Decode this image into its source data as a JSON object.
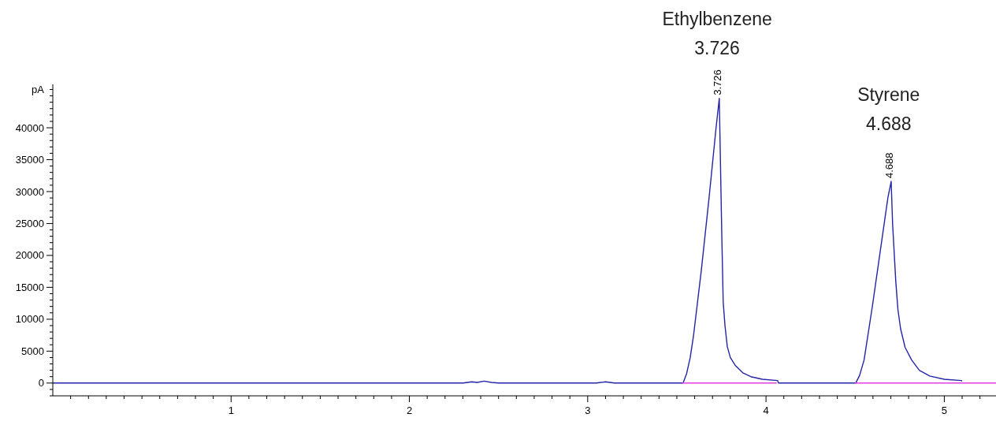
{
  "chart_data": {
    "type": "line",
    "ylabel": "pA",
    "xlim": [
      0,
      5.29
    ],
    "ylim": [
      -2000,
      46800
    ],
    "xticks": [
      {
        "value": 0.1,
        "label": null
      },
      {
        "value": 0.2,
        "label": null
      },
      {
        "value": 0.3,
        "label": null
      },
      {
        "value": 0.4,
        "label": null
      },
      {
        "value": 0.5,
        "label": null
      },
      {
        "value": 0.6,
        "label": null
      },
      {
        "value": 0.7,
        "label": null
      },
      {
        "value": 0.8,
        "label": null
      },
      {
        "value": 0.9,
        "label": null
      },
      1,
      {
        "value": 1.1,
        "label": null
      },
      {
        "value": 1.2,
        "label": null
      },
      {
        "value": 1.3,
        "label": null
      },
      {
        "value": 1.4,
        "label": null
      },
      {
        "value": 1.5,
        "label": null
      },
      {
        "value": 1.6,
        "label": null
      },
      {
        "value": 1.7,
        "label": null
      },
      {
        "value": 1.8,
        "label": null
      },
      {
        "value": 1.9,
        "label": null
      },
      2,
      {
        "value": 2.1,
        "label": null
      },
      {
        "value": 2.2,
        "label": null
      },
      {
        "value": 2.3,
        "label": null
      },
      {
        "value": 2.4,
        "label": null
      },
      {
        "value": 2.5,
        "label": null
      },
      {
        "value": 2.6,
        "label": null
      },
      {
        "value": 2.7,
        "label": null
      },
      {
        "value": 2.8,
        "label": null
      },
      {
        "value": 2.9,
        "label": null
      },
      3,
      {
        "value": 3.1,
        "label": null
      },
      {
        "value": 3.2,
        "label": null
      },
      {
        "value": 3.3,
        "label": null
      },
      {
        "value": 3.4,
        "label": null
      },
      {
        "value": 3.5,
        "label": null
      },
      {
        "value": 3.6,
        "label": null
      },
      {
        "value": 3.7,
        "label": null
      },
      {
        "value": 3.8,
        "label": null
      },
      {
        "value": 3.9,
        "label": null
      },
      4,
      {
        "value": 4.1,
        "label": null
      },
      {
        "value": 4.2,
        "label": null
      },
      {
        "value": 4.3,
        "label": null
      },
      {
        "value": 4.4,
        "label": null
      },
      {
        "value": 4.5,
        "label": null
      },
      {
        "value": 4.6,
        "label": null
      },
      {
        "value": 4.7,
        "label": null
      },
      {
        "value": 4.8,
        "label": null
      },
      {
        "value": 4.9,
        "label": null
      },
      5,
      {
        "value": 5.1,
        "label": null
      },
      {
        "value": 5.2,
        "label": null
      }
    ],
    "yticks": [
      {
        "value": -2000,
        "label": null
      },
      {
        "value": -1000,
        "label": null
      },
      0,
      {
        "value": 1000,
        "label": null
      },
      {
        "value": 2000,
        "label": null
      },
      {
        "value": 3000,
        "label": null
      },
      {
        "value": 4000,
        "label": null
      },
      5000,
      {
        "value": 6000,
        "label": null
      },
      {
        "value": 7000,
        "label": null
      },
      {
        "value": 8000,
        "label": null
      },
      {
        "value": 9000,
        "label": null
      },
      10000,
      {
        "value": 11000,
        "label": null
      },
      {
        "value": 12000,
        "label": null
      },
      {
        "value": 13000,
        "label": null
      },
      {
        "value": 14000,
        "label": null
      },
      15000,
      {
        "value": 16000,
        "label": null
      },
      {
        "value": 17000,
        "label": null
      },
      {
        "value": 18000,
        "label": null
      },
      {
        "value": 19000,
        "label": null
      },
      20000,
      {
        "value": 21000,
        "label": null
      },
      {
        "value": 22000,
        "label": null
      },
      {
        "value": 23000,
        "label": null
      },
      {
        "value": 24000,
        "label": null
      },
      25000,
      {
        "value": 26000,
        "label": null
      },
      {
        "value": 27000,
        "label": null
      },
      {
        "value": 28000,
        "label": null
      },
      {
        "value": 29000,
        "label": null
      },
      30000,
      {
        "value": 31000,
        "label": null
      },
      {
        "value": 32000,
        "label": null
      },
      {
        "value": 33000,
        "label": null
      },
      {
        "value": 34000,
        "label": null
      },
      35000,
      {
        "value": 36000,
        "label": null
      },
      {
        "value": 37000,
        "label": null
      },
      {
        "value": 38000,
        "label": null
      },
      {
        "value": 39000,
        "label": null
      },
      40000,
      {
        "value": 41000,
        "label": null
      },
      {
        "value": 42000,
        "label": null
      },
      {
        "value": 43000,
        "label": null
      },
      {
        "value": 44000,
        "label": null
      },
      {
        "value": 45000,
        "label": null
      },
      {
        "value": 46000,
        "label": null
      }
    ],
    "grid": false,
    "marker": "none",
    "line_style": "solid",
    "series": [
      {
        "color": "#2424a8",
        "x": [
          0,
          2.3,
          2.35,
          2.38,
          2.42,
          2.46,
          2.5,
          3.05,
          3.1,
          3.15,
          3.52,
          3.535,
          3.555,
          3.575,
          3.593,
          3.637,
          3.681,
          3.72,
          3.738,
          3.752,
          3.76,
          3.77,
          3.783,
          3.8,
          3.827,
          3.87,
          3.915,
          3.98,
          4.065,
          4.07,
          4.5,
          4.503,
          4.525,
          4.55,
          4.596,
          4.64,
          4.684,
          4.702,
          4.71,
          4.728,
          4.74,
          4.755,
          4.78,
          4.817,
          4.86,
          4.918,
          5.0,
          5.095,
          5.1
        ],
        "values": [
          0,
          0,
          200,
          100,
          300,
          100,
          0,
          0,
          200,
          0,
          0,
          0,
          1500,
          4000,
          7300,
          17600,
          29100,
          40000,
          44600,
          23300,
          12700,
          9000,
          5700,
          4000,
          2800,
          1600,
          1000,
          600,
          400,
          0,
          0,
          0,
          1200,
          3600,
          11900,
          20500,
          29100,
          31600,
          25000,
          15900,
          11500,
          8500,
          5600,
          3600,
          2000,
          1100,
          600,
          400,
          300
        ]
      },
      {
        "color": "#e040e0",
        "x": [
          3.53,
          4.06
        ],
        "values": [
          0,
          0
        ]
      },
      {
        "color": "#e040e0",
        "x": [
          4.5,
          5.29
        ],
        "values": [
          0,
          0
        ]
      }
    ],
    "annotations": [
      "Ethylbenzene\n3.726",
      "Styrene\n4.688",
      {
        "text": "3.726",
        "x": 3.726,
        "y": 44600
      },
      {
        "text": "4.688",
        "x": 4.688,
        "y": 31600
      }
    ]
  }
}
